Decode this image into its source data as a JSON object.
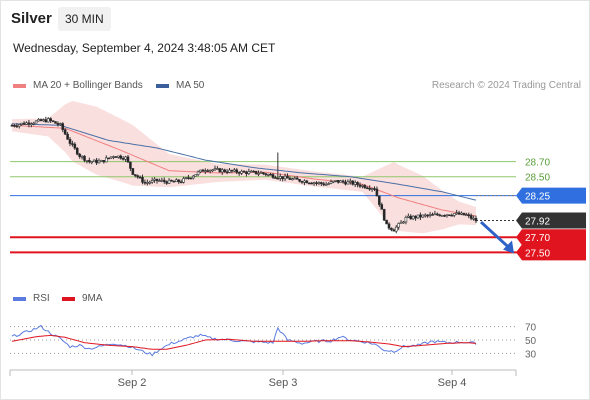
{
  "header": {
    "instrument": "Silver",
    "interval": "30 MIN",
    "datetime": "Wednesday, September 4, 2024 3:48:05 AM CET",
    "credit": "Research © 2024 Trading Central"
  },
  "legend": {
    "ma20": "MA 20 + Bollinger Bands",
    "ma50": "MA 50",
    "rsi": "RSI",
    "rsi_ma": "9MA"
  },
  "colors": {
    "bands": "#f6c4c4",
    "ma20": "#f08080",
    "ma50": "#4a6fa5",
    "bullish": "#ffffff",
    "bearish": "#222222",
    "resistance": "#8fc76b",
    "pivot": "#2f6fe0",
    "support": "#e0141e",
    "last": "#333333",
    "rsi": "#5b7be0",
    "rsi_ma": "#e0141e"
  },
  "chart_data": [
    {
      "type": "candlestick",
      "title": "Silver",
      "ylim": [
        27.2,
        29.25
      ],
      "x_ticks": [
        "Sep 2",
        "Sep 3",
        "Sep 4"
      ],
      "price_levels": [
        {
          "value": 28.7,
          "label": "28.70",
          "kind": "resistance"
        },
        {
          "value": 28.5,
          "label": "28.50",
          "kind": "resistance"
        },
        {
          "value": 28.25,
          "label": "28.25",
          "kind": "pivot"
        },
        {
          "value": 27.92,
          "label": "27.92",
          "kind": "last"
        },
        {
          "value": 27.7,
          "label": "27.70",
          "kind": "support"
        },
        {
          "value": 27.5,
          "label": "27.50",
          "kind": "support"
        }
      ],
      "projection": {
        "from": 27.9,
        "to": 27.55
      },
      "close_anchors": [
        [
          0,
          29.18
        ],
        [
          8,
          29.22
        ],
        [
          15,
          29.25
        ],
        [
          20,
          29.18
        ],
        [
          24,
          28.95
        ],
        [
          28,
          28.78
        ],
        [
          32,
          28.7
        ],
        [
          37,
          28.7
        ],
        [
          42,
          28.78
        ],
        [
          47,
          28.75
        ],
        [
          50,
          28.55
        ],
        [
          55,
          28.42
        ],
        [
          60,
          28.45
        ],
        [
          65,
          28.43
        ],
        [
          70,
          28.44
        ],
        [
          75,
          28.52
        ],
        [
          80,
          28.6
        ],
        [
          87,
          28.58
        ],
        [
          95,
          28.56
        ],
        [
          103,
          28.55
        ],
        [
          110,
          28.5
        ],
        [
          117,
          28.46
        ],
        [
          124,
          28.43
        ],
        [
          130,
          28.4
        ],
        [
          134,
          28.44
        ],
        [
          140,
          28.42
        ],
        [
          145,
          28.38
        ],
        [
          150,
          28.35
        ],
        [
          155,
          27.85
        ],
        [
          158,
          27.8
        ],
        [
          163,
          27.95
        ],
        [
          170,
          27.98
        ],
        [
          177,
          28.0
        ],
        [
          183,
          28.01
        ],
        [
          188,
          27.99
        ],
        [
          192,
          27.92
        ]
      ],
      "ma50_anchors": [
        [
          0,
          29.2
        ],
        [
          20,
          29.18
        ],
        [
          40,
          28.98
        ],
        [
          60,
          28.88
        ],
        [
          80,
          28.72
        ],
        [
          100,
          28.62
        ],
        [
          120,
          28.55
        ],
        [
          140,
          28.5
        ],
        [
          160,
          28.4
        ],
        [
          178,
          28.3
        ],
        [
          192,
          28.19
        ]
      ],
      "ma20_anchors": [
        [
          0,
          29.18
        ],
        [
          22,
          29.14
        ],
        [
          45,
          28.85
        ],
        [
          65,
          28.58
        ],
        [
          85,
          28.55
        ],
        [
          105,
          28.56
        ],
        [
          125,
          28.47
        ],
        [
          145,
          28.4
        ],
        [
          160,
          28.22
        ],
        [
          178,
          28.06
        ],
        [
          192,
          27.98
        ]
      ],
      "band_width_anchors": [
        [
          0,
          0.08
        ],
        [
          15,
          0.12
        ],
        [
          25,
          0.4
        ],
        [
          35,
          0.45
        ],
        [
          50,
          0.4
        ],
        [
          65,
          0.22
        ],
        [
          85,
          0.12
        ],
        [
          105,
          0.1
        ],
        [
          125,
          0.1
        ],
        [
          145,
          0.1
        ],
        [
          158,
          0.45
        ],
        [
          170,
          0.38
        ],
        [
          185,
          0.15
        ],
        [
          192,
          0.12
        ]
      ],
      "spike": {
        "index": 110,
        "high": 28.82
      }
    },
    {
      "type": "line",
      "title": "RSI",
      "ylim": [
        20,
        80
      ],
      "y_ticks": [
        70,
        50,
        30
      ],
      "series": [
        {
          "name": "RSI",
          "anchors": [
            [
              0,
              55
            ],
            [
              6,
              62
            ],
            [
              12,
              70
            ],
            [
              16,
              60
            ],
            [
              20,
              52
            ],
            [
              24,
              40
            ],
            [
              28,
              42
            ],
            [
              32,
              37
            ],
            [
              36,
              40
            ],
            [
              42,
              45
            ],
            [
              48,
              41
            ],
            [
              54,
              33
            ],
            [
              58,
              28
            ],
            [
              62,
              38
            ],
            [
              66,
              45
            ],
            [
              70,
              49
            ],
            [
              74,
              54
            ],
            [
              78,
              57
            ],
            [
              83,
              52
            ],
            [
              90,
              50
            ],
            [
              96,
              48
            ],
            [
              102,
              47
            ],
            [
              108,
              46
            ],
            [
              110,
              68
            ],
            [
              114,
              50
            ],
            [
              120,
              45
            ],
            [
              126,
              48
            ],
            [
              132,
              49
            ],
            [
              136,
              55
            ],
            [
              140,
              50
            ],
            [
              146,
              47
            ],
            [
              150,
              44
            ],
            [
              154,
              35
            ],
            [
              158,
              33
            ],
            [
              162,
              40
            ],
            [
              168,
              42
            ],
            [
              174,
              48
            ],
            [
              180,
              46
            ],
            [
              186,
              47
            ],
            [
              192,
              45
            ]
          ]
        },
        {
          "name": "9MA",
          "anchors": [
            [
              0,
              48
            ],
            [
              10,
              55
            ],
            [
              16,
              57
            ],
            [
              22,
              54
            ],
            [
              30,
              46
            ],
            [
              40,
              42
            ],
            [
              50,
              40
            ],
            [
              58,
              36
            ],
            [
              64,
              36
            ],
            [
              72,
              42
            ],
            [
              80,
              50
            ],
            [
              90,
              51
            ],
            [
              100,
              48
            ],
            [
              110,
              48
            ],
            [
              120,
              48
            ],
            [
              130,
              49
            ],
            [
              140,
              49
            ],
            [
              148,
              47
            ],
            [
              156,
              44
            ],
            [
              162,
              40
            ],
            [
              170,
              42
            ],
            [
              180,
              45
            ],
            [
              188,
              46
            ],
            [
              192,
              45
            ]
          ]
        }
      ]
    }
  ]
}
